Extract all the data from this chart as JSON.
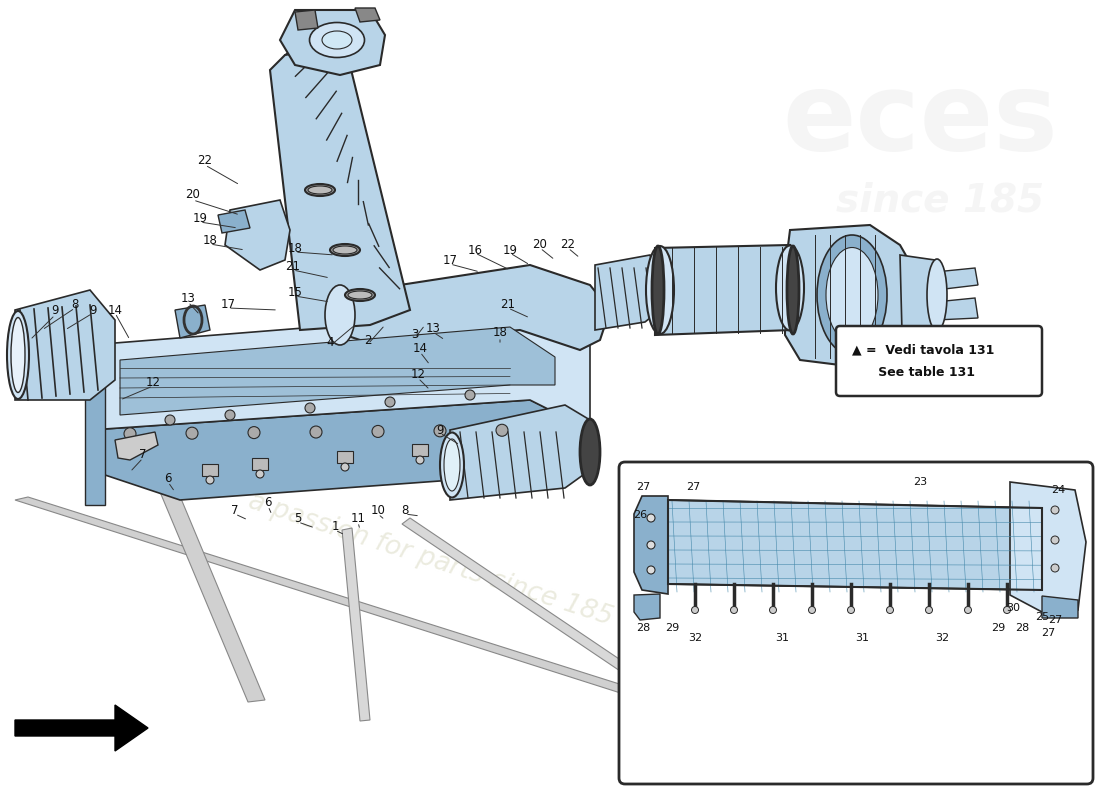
{
  "bg": "#ffffff",
  "mc": "#b8d4e8",
  "dc": "#8ab0cc",
  "lc": "#d0e4f4",
  "lnc": "#2a2a2a",
  "note_line1": "▲ =  Vedi tavola 131",
  "note_line2": "      See table 131",
  "watermark_text": "a passion for parts since 185",
  "figsize": [
    11.0,
    8.0
  ],
  "dpi": 100,
  "main_labels": [
    [
      "9",
      55,
      310
    ],
    [
      "8",
      75,
      305
    ],
    [
      "9",
      93,
      310
    ],
    [
      "14",
      115,
      310
    ],
    [
      "13",
      188,
      298
    ],
    [
      "17",
      228,
      305
    ],
    [
      "22",
      205,
      160
    ],
    [
      "20",
      193,
      195
    ],
    [
      "19",
      200,
      218
    ],
    [
      "18",
      210,
      240
    ],
    [
      "18",
      295,
      248
    ],
    [
      "21",
      293,
      266
    ],
    [
      "15",
      295,
      292
    ],
    [
      "4",
      330,
      342
    ],
    [
      "2",
      368,
      340
    ],
    [
      "3",
      415,
      335
    ],
    [
      "17",
      450,
      260
    ],
    [
      "16",
      475,
      250
    ],
    [
      "19",
      510,
      250
    ],
    [
      "20",
      540,
      245
    ],
    [
      "22",
      568,
      245
    ],
    [
      "21",
      508,
      305
    ],
    [
      "13",
      433,
      328
    ],
    [
      "18",
      500,
      333
    ],
    [
      "14",
      420,
      348
    ],
    [
      "12",
      153,
      382
    ],
    [
      "12",
      418,
      375
    ],
    [
      "9",
      440,
      430
    ],
    [
      "7",
      143,
      455
    ],
    [
      "6",
      168,
      478
    ],
    [
      "7",
      235,
      510
    ],
    [
      "6",
      268,
      502
    ],
    [
      "5",
      298,
      518
    ],
    [
      "1",
      335,
      526
    ],
    [
      "11",
      358,
      518
    ],
    [
      "10",
      378,
      510
    ],
    [
      "8",
      405,
      510
    ]
  ],
  "inset_labels": [
    [
      "27",
      643,
      487
    ],
    [
      "27",
      693,
      487
    ],
    [
      "26",
      640,
      515
    ],
    [
      "23",
      920,
      482
    ],
    [
      "24",
      1058,
      490
    ],
    [
      "27",
      1055,
      620
    ],
    [
      "30",
      1013,
      608
    ],
    [
      "25",
      1042,
      617
    ],
    [
      "28",
      643,
      628
    ],
    [
      "29",
      672,
      628
    ],
    [
      "32",
      695,
      638
    ],
    [
      "31",
      782,
      638
    ],
    [
      "31",
      862,
      638
    ],
    [
      "32",
      942,
      638
    ],
    [
      "29",
      998,
      628
    ],
    [
      "28",
      1022,
      628
    ],
    [
      "27",
      1048,
      633
    ]
  ]
}
